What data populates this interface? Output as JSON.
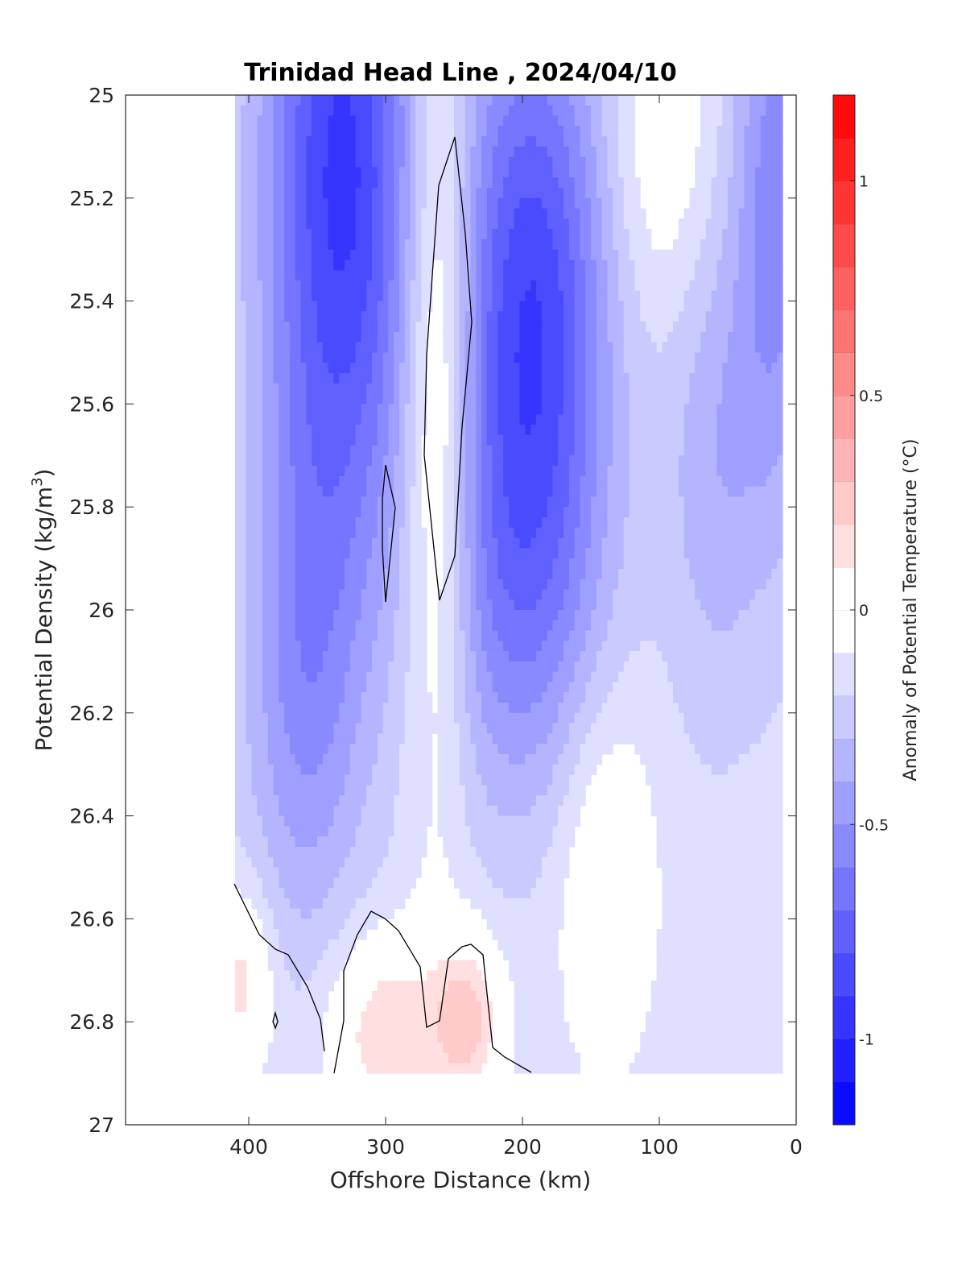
{
  "chart_data": {
    "type": "heatmap",
    "title": "Trinidad Head Line , 2024/04/10",
    "xlabel": "Offshore Distance (km)",
    "ylabel_main": "Potential Density (kg/m",
    "ylabel_sup": "3",
    "ylabel_tail": ")",
    "colorbar_label": "Anomaly of Potential Temperature (°C)",
    "xlim": [
      490,
      0
    ],
    "ylim": [
      25,
      27
    ],
    "x_reversed": true,
    "y_reversed": true,
    "x_ticks": [
      400,
      300,
      200,
      100,
      0
    ],
    "y_ticks": [
      25,
      25.2,
      25.4,
      25.6,
      25.8,
      26,
      26.2,
      26.4,
      26.6,
      26.8,
      27
    ],
    "x_tick_labels": [
      "400",
      "300",
      "200",
      "100",
      "0"
    ],
    "y_tick_labels": [
      "25",
      "25.2",
      "25.4",
      "25.6",
      "25.8",
      "26",
      "26.2",
      "26.4",
      "26.6",
      "26.8",
      "27"
    ],
    "colorbar_range": [
      -1.2,
      1.2
    ],
    "colorbar_ticks": [
      1,
      0.5,
      0,
      -0.5,
      -1
    ],
    "colorbar_tick_labels": [
      "1",
      "0.5",
      "0",
      "-0.5",
      "-1"
    ],
    "colormap": "blue-white-red, 24 levels of 0.1 °C",
    "contour_level": 0,
    "data_x_range_km": [
      410,
      10
    ],
    "data_y_range": [
      25,
      26.9
    ],
    "features": [
      {
        "name": "cold core",
        "x_km": 330,
        "y": 25.1,
        "value": -0.9
      },
      {
        "name": "cold core",
        "x_km": 190,
        "y": 25.4,
        "value": -0.8
      },
      {
        "name": "warm tongue",
        "x_km": 255,
        "y": 25.45,
        "value": 0.15
      },
      {
        "name": "warm patch",
        "x_km": 300,
        "y": 26.8,
        "value": 0.15
      },
      {
        "name": "warm patch",
        "x_km": 240,
        "y": 26.8,
        "value": 0.2
      },
      {
        "name": "warm patch",
        "x_km": 405,
        "y": 26.75,
        "value": 0.15
      }
    ]
  },
  "colors": {
    "cold_max": "#0000ff",
    "neutral": "#ffffff",
    "warm_max": "#ff0000"
  }
}
